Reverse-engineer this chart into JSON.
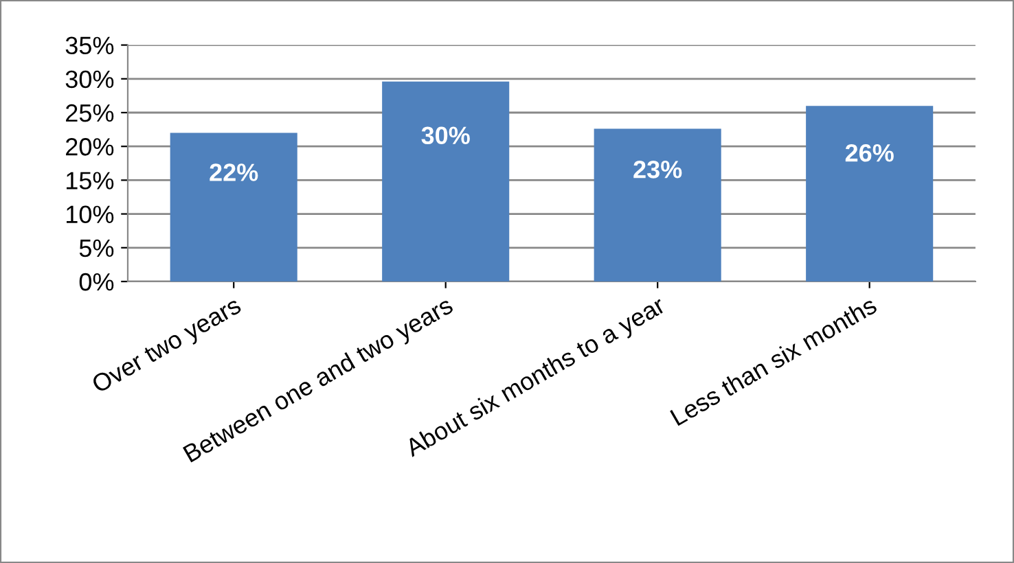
{
  "chart_data": {
    "type": "bar",
    "categories": [
      "Over two years",
      "Between one and two years",
      "About six months to a year",
      "Less than six months"
    ],
    "values": [
      22,
      29.6,
      22.6,
      26
    ],
    "value_labels": [
      "22%",
      "30%",
      "23%",
      "26%"
    ],
    "color": "#4f81bd",
    "ylim": [
      0,
      35
    ],
    "yticks": [
      {
        "value": 0,
        "label": "0%"
      },
      {
        "value": 5,
        "label": "5%"
      },
      {
        "value": 10,
        "label": "10%"
      },
      {
        "value": 15,
        "label": "15%"
      },
      {
        "value": 20,
        "label": "20%"
      },
      {
        "value": 25,
        "label": "25%"
      },
      {
        "value": 30,
        "label": "30%"
      },
      {
        "value": 35,
        "label": "35%"
      }
    ],
    "grid": "y"
  }
}
